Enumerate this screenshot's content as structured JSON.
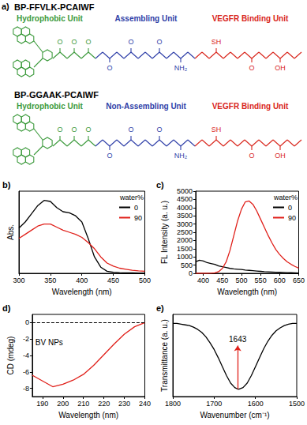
{
  "figure": {
    "panel": "a)",
    "molecules": [
      {
        "name": "BP-FFVLK-PCAIWF",
        "units": [
          {
            "label": "Hydrophobic Unit",
            "color": "#3c9a3c",
            "atoms": [
              "O",
              "O",
              "O"
            ]
          },
          {
            "label": "Assembling Unit",
            "color": "#2f3fa8",
            "atoms": [
              "O",
              "O",
              "O",
              "NH₂"
            ]
          },
          {
            "label": "VEGFR Binding Unit",
            "color": "#d9261c",
            "atoms": [
              "SH",
              "O",
              "OH"
            ]
          }
        ]
      },
      {
        "name": "BP-GGAAK-PCAIWF",
        "units": [
          {
            "label": "Hydrophobic Unit",
            "color": "#3c9a3c",
            "atoms": [
              "O",
              "O",
              "O"
            ]
          },
          {
            "label": "Non-Assembling Unit",
            "color": "#2f3fa8",
            "atoms": [
              "O",
              "O",
              "O",
              "NH₂"
            ]
          },
          {
            "label": "VEGFR Binding Unit",
            "color": "#d9261c",
            "atoms": [
              "SH",
              "O",
              "OH"
            ]
          }
        ]
      }
    ]
  },
  "chart_data": [
    {
      "panel": "b)",
      "type": "line",
      "xlabel": "Wavelength (nm)",
      "ylabel": "Abs.",
      "x": [
        300,
        310,
        320,
        330,
        340,
        350,
        360,
        370,
        380,
        390,
        400,
        410,
        420,
        430,
        440,
        450,
        460,
        470,
        480,
        490,
        500
      ],
      "xlim": [
        300,
        500
      ],
      "xticks": [
        300,
        350,
        400,
        450,
        500
      ],
      "ylim": [
        0,
        0.4
      ],
      "tick_labels": "x",
      "grid": false,
      "legend": "top-right",
      "legend_title": "water%",
      "series": [
        {
          "name": "0",
          "color": "#000000",
          "values": [
            0.22,
            0.25,
            0.29,
            0.33,
            0.355,
            0.35,
            0.32,
            0.3,
            0.295,
            0.28,
            0.25,
            0.17,
            0.08,
            0.03,
            0.01,
            0.005,
            0.003,
            0.002,
            0.002,
            0.001,
            0.001
          ]
        },
        {
          "name": "90",
          "color": "#e0201a",
          "values": [
            0.17,
            0.19,
            0.21,
            0.23,
            0.24,
            0.24,
            0.225,
            0.21,
            0.2,
            0.19,
            0.175,
            0.15,
            0.12,
            0.08,
            0.05,
            0.035,
            0.025,
            0.02,
            0.015,
            0.012,
            0.01
          ]
        }
      ]
    },
    {
      "panel": "c)",
      "type": "line",
      "xlabel": "Wavelength (nm)",
      "ylabel": "FL Intensity (a. u.)",
      "x": [
        380,
        390,
        400,
        410,
        420,
        430,
        440,
        450,
        460,
        470,
        480,
        490,
        500,
        510,
        520,
        530,
        540,
        550,
        560,
        570,
        580,
        590,
        600,
        610,
        620,
        630,
        640,
        650
      ],
      "xlim": [
        380,
        650
      ],
      "xticks": [
        400,
        450,
        500,
        550,
        600,
        650
      ],
      "ylim": [
        0,
        5000
      ],
      "yticks": [
        0,
        500,
        1000,
        1500,
        2000,
        2500,
        3000,
        3500,
        4000,
        4500,
        5000
      ],
      "grid": false,
      "legend": "top-right",
      "legend_title": "water%",
      "series": [
        {
          "name": "0",
          "color": "#000000",
          "values": [
            700,
            800,
            750,
            650,
            600,
            550,
            450,
            400,
            350,
            300,
            270,
            250,
            230,
            200,
            180,
            160,
            140,
            120,
            100,
            90,
            80,
            70,
            60,
            50,
            40,
            35,
            30,
            20
          ]
        },
        {
          "name": "90",
          "color": "#e0201a",
          "values": [
            0,
            0,
            0,
            0,
            10,
            30,
            100,
            300,
            700,
            1400,
            2300,
            3200,
            3900,
            4350,
            4400,
            4200,
            3800,
            3300,
            2800,
            2300,
            1850,
            1450,
            1150,
            900,
            700,
            550,
            420,
            320
          ]
        }
      ]
    },
    {
      "panel": "d)",
      "type": "line",
      "xlabel": "Wavelength (nm)",
      "ylabel": "CD (mdeg)",
      "x": [
        185,
        190,
        195,
        200,
        205,
        210,
        215,
        220,
        225,
        230,
        235,
        240
      ],
      "values": [
        -6.4,
        -7.1,
        -7.8,
        -7.5,
        -7.0,
        -6.3,
        -5.2,
        -3.9,
        -2.6,
        -1.4,
        -0.5,
        0
      ],
      "color": "#e0201a",
      "xlim": [
        185,
        240
      ],
      "xticks": [
        190,
        200,
        210,
        220,
        230,
        240
      ],
      "ylim": [
        -9,
        1
      ],
      "yticks": [
        -8,
        -6,
        -4,
        -2,
        0
      ],
      "hline": 0,
      "grid": false,
      "annotations": [
        "BV NPs"
      ]
    },
    {
      "panel": "e)",
      "type": "line",
      "xlabel": "Wavenumber (cm⁻¹)",
      "ylabel": "Transmittance (a. u.)",
      "x": [
        1800,
        1790,
        1780,
        1770,
        1760,
        1750,
        1740,
        1730,
        1720,
        1710,
        1700,
        1690,
        1680,
        1670,
        1660,
        1650,
        1643,
        1640,
        1630,
        1620,
        1610,
        1600,
        1590,
        1580,
        1570,
        1560,
        1550,
        1540,
        1530,
        1520,
        1510,
        1500
      ],
      "values": [
        0.98,
        0.98,
        0.97,
        0.96,
        0.95,
        0.93,
        0.9,
        0.86,
        0.8,
        0.72,
        0.63,
        0.52,
        0.4,
        0.28,
        0.18,
        0.12,
        0.1,
        0.1,
        0.12,
        0.18,
        0.28,
        0.4,
        0.52,
        0.64,
        0.74,
        0.82,
        0.88,
        0.92,
        0.95,
        0.97,
        0.98,
        0.98
      ],
      "color": "#000000",
      "xlim": [
        1800,
        1500
      ],
      "xticks": [
        1800,
        1700,
        1600,
        1500
      ],
      "ylim": [
        0,
        1.1
      ],
      "tick_labels": "x",
      "grid": false,
      "annotations": [
        {
          "text": "1643",
          "x": 1643
        }
      ]
    }
  ]
}
